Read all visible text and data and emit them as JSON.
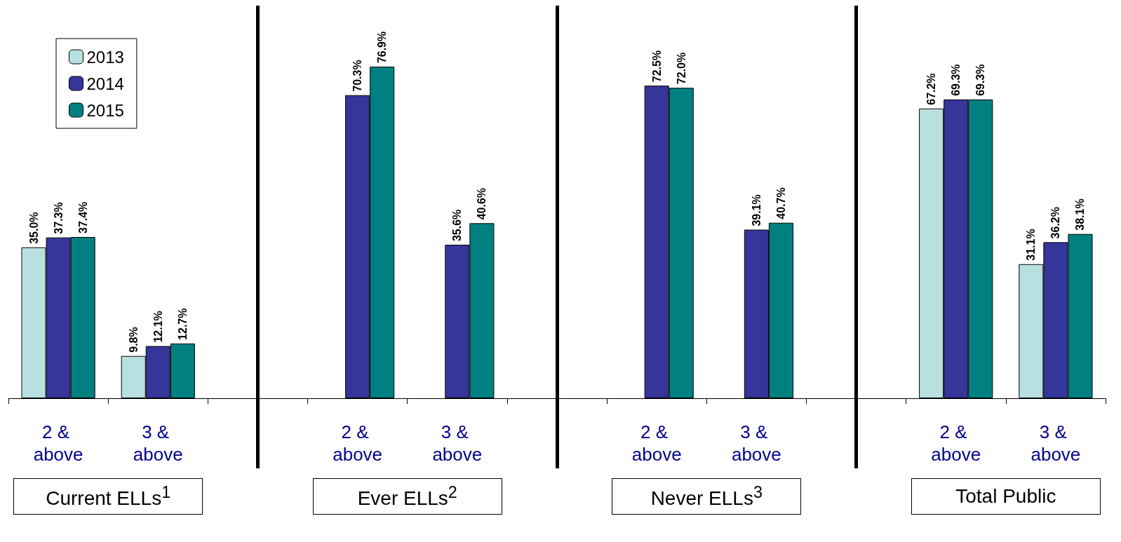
{
  "chart_data": {
    "type": "bar",
    "categories": [
      "2 & above",
      "3 & above",
      null,
      "2 & above",
      "3 & above",
      null,
      "2 & above",
      "3 & above",
      null,
      "2 & above",
      "3 & above"
    ],
    "series": [
      {
        "name": "2013",
        "color": "#b9e0e0",
        "values": [
          35.0,
          9.8,
          null,
          null,
          null,
          null,
          null,
          null,
          null,
          67.2,
          31.1
        ],
        "value_labels": [
          "35.0%",
          "9.8%",
          null,
          null,
          null,
          null,
          null,
          null,
          null,
          "67.2%",
          "31.1%"
        ]
      },
      {
        "name": "2014",
        "color": "#35359a",
        "values": [
          37.3,
          12.1,
          null,
          70.3,
          35.6,
          null,
          72.5,
          39.1,
          null,
          69.3,
          36.2
        ],
        "value_labels": [
          "37.3%",
          "12.1%",
          null,
          "70.3%",
          "35.6%",
          null,
          "72.5%",
          "39.1%",
          null,
          "69.3%",
          "36.2%"
        ]
      },
      {
        "name": "2015",
        "color": "#008080",
        "values": [
          37.4,
          12.7,
          null,
          76.9,
          40.6,
          null,
          72.0,
          40.7,
          null,
          69.3,
          38.1
        ],
        "value_labels": [
          "37.4%",
          "12.7%",
          null,
          "76.9%",
          "40.6%",
          null,
          "72.0%",
          "40.7%",
          null,
          "69.3%",
          "38.1%"
        ]
      }
    ],
    "annotations": [
      "Current ELLs$^{1}$",
      "Ever ELLs$^{2}$",
      "Never ELLs$^{3}$",
      "Total Public"
    ],
    "legend": "top left",
    "grid": false
  }
}
